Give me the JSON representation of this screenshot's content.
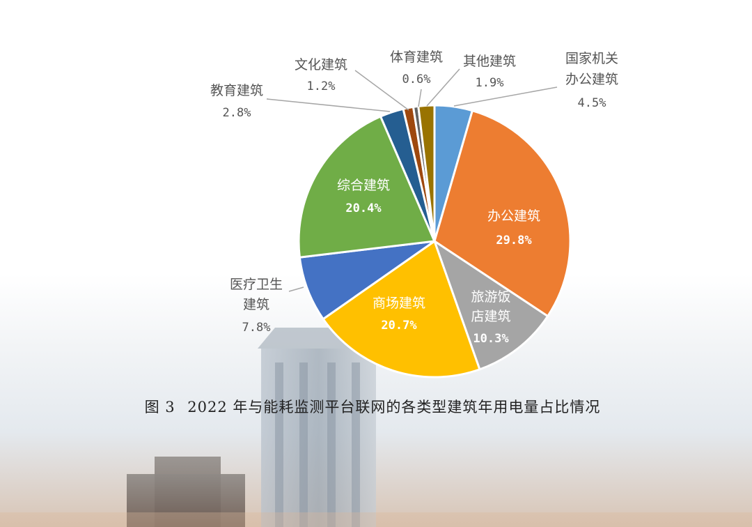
{
  "caption": {
    "figure_no": "图 3",
    "text": "2022 年与能耗监测平台联网的各类型建筑年用电量占比情况"
  },
  "chart_data": {
    "type": "pie",
    "title": "",
    "slices": [
      {
        "label_lines": [
          "国家机关",
          "办公建筑"
        ],
        "value": 4.5,
        "percent_text": "4.5%",
        "color": "#5b9bd5",
        "placement": "outside"
      },
      {
        "label_lines": [
          "办公建筑"
        ],
        "value": 29.8,
        "percent_text": "29.8%",
        "color": "#ed7d31",
        "placement": "inside"
      },
      {
        "label_lines": [
          "旅游饭",
          "店建筑"
        ],
        "value": 10.3,
        "percent_text": "10.3%",
        "color": "#a5a5a5",
        "placement": "inside"
      },
      {
        "label_lines": [
          "商场建筑"
        ],
        "value": 20.7,
        "percent_text": "20.7%",
        "color": "#ffc000",
        "placement": "inside"
      },
      {
        "label_lines": [
          "医疗卫生",
          "建筑"
        ],
        "value": 7.8,
        "percent_text": "7.8%",
        "color": "#4472c4",
        "placement": "outside"
      },
      {
        "label_lines": [
          "综合建筑"
        ],
        "value": 20.4,
        "percent_text": "20.4%",
        "color": "#70ad47",
        "placement": "inside"
      },
      {
        "label_lines": [
          "教育建筑"
        ],
        "value": 2.8,
        "percent_text": "2.8%",
        "color": "#255e91",
        "placement": "outside"
      },
      {
        "label_lines": [
          "文化建筑"
        ],
        "value": 1.2,
        "percent_text": "1.2%",
        "color": "#9e480e",
        "placement": "outside"
      },
      {
        "label_lines": [
          "体育建筑"
        ],
        "value": 0.6,
        "percent_text": "0.6%",
        "color": "#636363",
        "placement": "outside"
      },
      {
        "label_lines": [
          "其他建筑"
        ],
        "value": 1.9,
        "percent_text": "1.9%",
        "color": "#997300",
        "placement": "outside"
      }
    ],
    "start_angle": "12 o'clock",
    "direction": "clockwise",
    "legend": "none"
  }
}
